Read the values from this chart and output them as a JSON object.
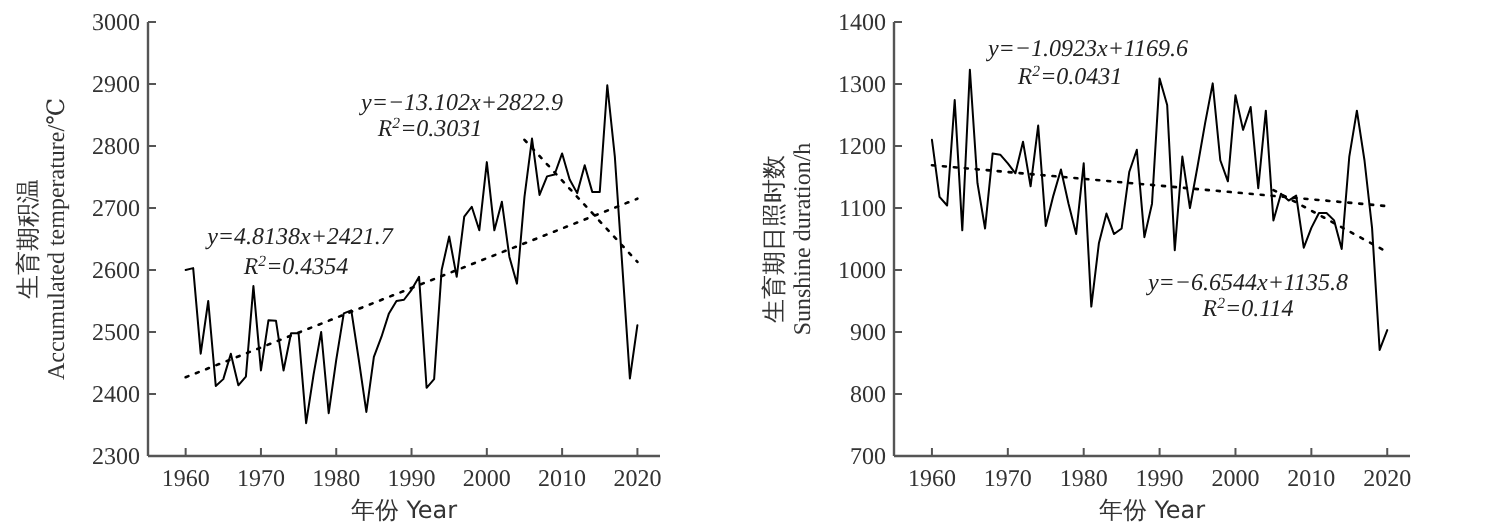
{
  "chart_data": [
    {
      "type": "line",
      "xlabel": "年份 Year",
      "ylabel": "生育期积温\nAccumulated temperature/℃",
      "xlim": [
        1955,
        2023
      ],
      "xticks": [
        1960,
        1970,
        1980,
        1990,
        2000,
        2010,
        2020
      ],
      "ylim": [
        2300,
        3000
      ],
      "yticks": [
        2300,
        2400,
        2500,
        2600,
        2700,
        2800,
        2900,
        3000
      ],
      "annotations": [
        "y=4.8138x+2421.7",
        "R$^{2}$=0.4354",
        "y=−13.102x+2822.9",
        "R$^{2}$=0.3031"
      ],
      "x": [
        1960,
        1961,
        1962,
        1963,
        1964,
        1965,
        1966,
        1967,
        1968,
        1969,
        1970,
        1971,
        1972,
        1973,
        1974,
        1975,
        1976,
        1977,
        1978,
        1979,
        1980,
        1981,
        1982,
        1983,
        1984,
        1985,
        1986,
        1987,
        1988,
        1989,
        1990,
        1991,
        1992,
        1993,
        1994,
        1995,
        1996,
        1997,
        1998,
        1999,
        2000,
        2001,
        2002,
        2003,
        2004,
        2005,
        2006,
        2007,
        2008,
        2009,
        2010,
        2011,
        2012,
        2013,
        2014,
        2015,
        2016,
        2017,
        2018,
        2019,
        2020
      ],
      "series": [
        {
          "color": "#000000",
          "line_style": "solid",
          "values": [
            2600,
            2603,
            2465,
            2550,
            2413,
            2424,
            2465,
            2414,
            2428,
            2574,
            2438,
            2519,
            2518,
            2438,
            2498,
            2498,
            2353,
            2432,
            2500,
            2369,
            2455,
            2530,
            2535,
            2455,
            2371,
            2460,
            2492,
            2530,
            2550,
            2552,
            2568,
            2589,
            2410,
            2424,
            2600,
            2654,
            2589,
            2686,
            2702,
            2664,
            2774,
            2664,
            2710,
            2621,
            2578,
            2718,
            2812,
            2721,
            2751,
            2754,
            2788,
            2746,
            2724,
            2769,
            2726,
            2726,
            2898,
            2783,
            2605,
            2425,
            2511
          ]
        },
        {
          "color": "#000000",
          "line_style": "dotted",
          "x": [
            1960,
            2020
          ],
          "values": [
            2427,
            2715
          ]
        },
        {
          "color": "#000000",
          "line_style": "dotted",
          "x": [
            2005,
            2020
          ],
          "values": [
            2810,
            2613
          ]
        }
      ]
    },
    {
      "type": "line",
      "xlabel": "年份 Year",
      "ylabel": "生育期日照时数\nSunshine duration/h",
      "xlim": [
        1955,
        2023
      ],
      "xticks": [
        1960,
        1970,
        1980,
        1990,
        2000,
        2010,
        2020
      ],
      "ylim": [
        700,
        1400
      ],
      "yticks": [
        700,
        800,
        900,
        1000,
        1100,
        1200,
        1300,
        1400
      ],
      "annotations": [
        "y=−1.0923x+1169.6",
        "R$^{2}$=0.0431",
        "y=−6.6544x+1135.8",
        "R$^{2}$=0.114"
      ],
      "x": [
        1960,
        1961,
        1962,
        1963,
        1964,
        1965,
        1966,
        1967,
        1968,
        1969,
        1970,
        1971,
        1972,
        1973,
        1974,
        1975,
        1976,
        1977,
        1978,
        1979,
        1980,
        1981,
        1982,
        1983,
        1984,
        1985,
        1986,
        1987,
        1988,
        1989,
        1990,
        1991,
        1992,
        1993,
        1994,
        1995,
        1996,
        1997,
        1998,
        1999,
        2000,
        2001,
        2002,
        2003,
        2004,
        2005,
        2006,
        2007,
        2008,
        2009,
        2010,
        2011,
        2012,
        2013,
        2014,
        2015,
        2016,
        2017,
        2018,
        2019,
        2020
      ],
      "series": [
        {
          "color": "#000000",
          "line_style": "solid",
          "values": [
            1210,
            1118,
            1104,
            1274,
            1064,
            1323,
            1140,
            1067,
            1188,
            1186,
            1172,
            1156,
            1207,
            1135,
            1233,
            1071,
            1120,
            1162,
            1107,
            1058,
            1172,
            941,
            1043,
            1091,
            1058,
            1067,
            1158,
            1194,
            1053,
            1107,
            1309,
            1266,
            1032,
            1183,
            1100,
            1167,
            1237,
            1301,
            1177,
            1143,
            1282,
            1226,
            1263,
            1132,
            1257,
            1080,
            1123,
            1112,
            1120,
            1036,
            1068,
            1092,
            1092,
            1080,
            1034,
            1183,
            1257,
            1177,
            1068,
            871,
            903
          ]
        },
        {
          "color": "#000000",
          "line_style": "dotted",
          "x": [
            1960,
            2020
          ],
          "values": [
            1169,
            1103
          ]
        },
        {
          "color": "#000000",
          "line_style": "dotted",
          "x": [
            2005,
            2020
          ],
          "values": [
            1129,
            1029
          ]
        }
      ]
    }
  ]
}
